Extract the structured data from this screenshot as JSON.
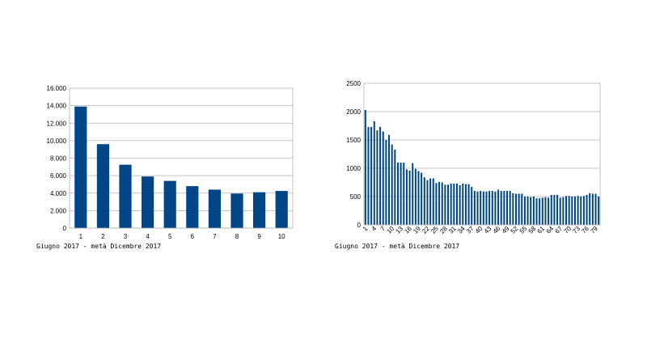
{
  "colors": {
    "bar": "#004586",
    "grid": "#b3b3b3",
    "axis": "#b3b3b3",
    "background": "#ffffff"
  },
  "chart_data": [
    {
      "type": "bar",
      "title": "",
      "xlabel": "",
      "ylabel": "",
      "caption": "Giugno 2017 - metà Dicembre 2017",
      "categories": [
        "1",
        "2",
        "3",
        "4",
        "5",
        "6",
        "7",
        "8",
        "9",
        "10"
      ],
      "values": [
        13900,
        9600,
        7250,
        5900,
        5400,
        4800,
        4400,
        3950,
        4100,
        4250
      ],
      "ylim": [
        0,
        16000
      ],
      "yticks": [
        0,
        2000,
        4000,
        6000,
        8000,
        10000,
        12000,
        14000,
        16000
      ],
      "ytick_labels": [
        "0",
        "2.000",
        "4.000",
        "6.000",
        "8.000",
        "10.000",
        "12.000",
        "14.000",
        "16.000"
      ],
      "grid": true,
      "legend": "none"
    },
    {
      "type": "bar",
      "title": "",
      "xlabel": "",
      "ylabel": "",
      "caption": "Giugno 2017 - metà Dicembre 2017",
      "categories": [
        "1",
        "2",
        "3",
        "4",
        "5",
        "6",
        "7",
        "8",
        "9",
        "10",
        "11",
        "12",
        "13",
        "14",
        "15",
        "16",
        "17",
        "18",
        "19",
        "20",
        "21",
        "22",
        "23",
        "24",
        "25",
        "26",
        "27",
        "28",
        "29",
        "30",
        "31",
        "32",
        "33",
        "34",
        "35",
        "36",
        "37",
        "38",
        "39",
        "40",
        "41",
        "42",
        "43",
        "44",
        "45",
        "46",
        "47",
        "48",
        "49",
        "50",
        "51",
        "52",
        "53",
        "54",
        "55",
        "56",
        "57",
        "58",
        "59",
        "60",
        "61",
        "62",
        "63",
        "64",
        "65",
        "66",
        "67",
        "68",
        "69",
        "70",
        "71",
        "72",
        "73",
        "74",
        "75",
        "76",
        "77",
        "78",
        "79",
        "80"
      ],
      "values": [
        2030,
        1730,
        1730,
        1830,
        1670,
        1730,
        1650,
        1500,
        1590,
        1420,
        1330,
        1100,
        1100,
        1100,
        980,
        960,
        1090,
        990,
        950,
        920,
        840,
        790,
        820,
        820,
        740,
        760,
        750,
        710,
        710,
        730,
        730,
        730,
        700,
        730,
        720,
        720,
        670,
        600,
        590,
        600,
        590,
        590,
        600,
        600,
        590,
        620,
        600,
        600,
        600,
        600,
        560,
        550,
        550,
        550,
        500,
        500,
        490,
        500,
        470,
        470,
        480,
        490,
        480,
        530,
        530,
        530,
        480,
        490,
        510,
        510,
        500,
        500,
        510,
        500,
        510,
        530,
        560,
        550,
        550,
        500
      ],
      "xtick_labels": [
        "1",
        "4",
        "7",
        "10",
        "13",
        "16",
        "19",
        "22",
        "25",
        "28",
        "31",
        "34",
        "37",
        "40",
        "43",
        "46",
        "49",
        "52",
        "55",
        "58",
        "61",
        "64",
        "67",
        "70",
        "73",
        "76",
        "79"
      ],
      "ylim": [
        0,
        2500
      ],
      "yticks": [
        0,
        500,
        1000,
        1500,
        2000,
        2500
      ],
      "ytick_labels": [
        "0",
        "500",
        "1000",
        "1500",
        "2000",
        "2500"
      ],
      "grid": true,
      "legend": "none"
    }
  ]
}
